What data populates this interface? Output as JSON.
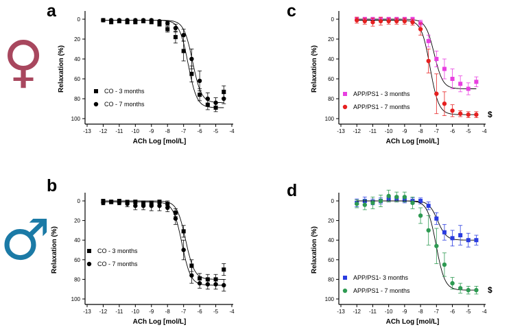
{
  "colors": {
    "female": "#a8475e",
    "male": "#1b7aa6",
    "black": "#000000",
    "magenta": "#e83fe0",
    "red": "#e62020",
    "blue": "#2a3ce0",
    "green": "#2e9a52"
  },
  "symbols": {
    "female": "♀",
    "male": "♂"
  },
  "chart_data": [
    {
      "id": "a",
      "panel_label": "a",
      "type": "scatter",
      "xlabel": "ACh Log [mol/L]",
      "ylabel": "Relaxation (%)",
      "xlim": [
        -13,
        -4
      ],
      "ylim": [
        0,
        100
      ],
      "y_inverted": true,
      "xticks": [
        -13,
        -12,
        -11,
        -10,
        -9,
        -8,
        -7,
        -6,
        -5,
        -4
      ],
      "yticks": [
        0,
        20,
        40,
        60,
        80,
        100
      ],
      "x": [
        -12,
        -11.5,
        -11,
        -10.5,
        -10,
        -9.5,
        -9,
        -8.5,
        -8,
        -7.5,
        -7,
        -6.5,
        -6,
        -5.5,
        -5,
        -4.5
      ],
      "series": [
        {
          "name": "CO - 3 months",
          "marker": "square",
          "color": "#000000",
          "values": [
            1,
            3,
            2,
            3,
            3,
            2,
            3,
            5,
            10,
            18,
            32,
            55,
            76,
            86,
            89,
            73
          ],
          "err": [
            1,
            1,
            1,
            1,
            1,
            1,
            1,
            2,
            3,
            6,
            10,
            8,
            6,
            5,
            4,
            6
          ]
        },
        {
          "name": "CO - 7 months",
          "marker": "circle",
          "color": "#000000",
          "values": [
            1,
            1,
            1,
            1,
            1,
            1,
            1,
            2,
            4,
            9,
            16,
            40,
            62,
            80,
            84,
            80
          ],
          "err": [
            1,
            1,
            1,
            1,
            1,
            1,
            1,
            1,
            2,
            4,
            6,
            10,
            10,
            6,
            5,
            5
          ]
        }
      ]
    },
    {
      "id": "b",
      "panel_label": "b",
      "type": "scatter",
      "xlabel": "ACh Log [mol/L]",
      "ylabel": "Relaxation (%)",
      "xlim": [
        -13,
        -4
      ],
      "ylim": [
        0,
        100
      ],
      "y_inverted": true,
      "xticks": [
        -13,
        -12,
        -11,
        -10,
        -9,
        -8,
        -7,
        -6,
        -5,
        -4
      ],
      "yticks": [
        0,
        20,
        40,
        60,
        80,
        100
      ],
      "x": [
        -12,
        -11.5,
        -11,
        -10.5,
        -10,
        -9.5,
        -9,
        -8.5,
        -8,
        -7.5,
        -7,
        -6.5,
        -6,
        -5.5,
        -5,
        -4.5
      ],
      "series": [
        {
          "name": "CO - 3 months",
          "marker": "square",
          "color": "#000000",
          "values": [
            0,
            1,
            0,
            1,
            1,
            2,
            2,
            1,
            3,
            12,
            31,
            66,
            79,
            80,
            80,
            70
          ],
          "err": [
            1,
            1,
            1,
            1,
            2,
            2,
            2,
            2,
            3,
            4,
            6,
            6,
            5,
            5,
            5,
            6
          ]
        },
        {
          "name": "CO - 7 months",
          "marker": "circle",
          "color": "#000000",
          "values": [
            2,
            1,
            2,
            3,
            5,
            5,
            5,
            5,
            7,
            18,
            50,
            76,
            84,
            85,
            85,
            86
          ],
          "err": [
            2,
            2,
            2,
            3,
            4,
            4,
            5,
            5,
            4,
            6,
            10,
            8,
            5,
            5,
            5,
            6
          ]
        }
      ]
    },
    {
      "id": "c",
      "panel_label": "c",
      "type": "scatter",
      "xlabel": "ACh Log [mol/L]",
      "ylabel": "Relaxation (%)",
      "xlim": [
        -13,
        -4
      ],
      "ylim": [
        0,
        100
      ],
      "y_inverted": true,
      "xticks": [
        -13,
        -12,
        -11,
        -10,
        -9,
        -8,
        -7,
        -6,
        -5,
        -4
      ],
      "yticks": [
        0,
        20,
        40,
        60,
        80,
        100
      ],
      "x": [
        -12,
        -11.5,
        -11,
        -10.5,
        -10,
        -9.5,
        -9,
        -8.5,
        -8,
        -7.5,
        -7,
        -6.5,
        -6,
        -5.5,
        -5,
        -4.5
      ],
      "series": [
        {
          "name": "APP/PS1 - 3 months",
          "marker": "square",
          "color": "#e83fe0",
          "values": [
            0,
            0,
            0,
            0,
            0,
            0,
            0,
            0,
            4,
            22,
            40,
            50,
            60,
            65,
            70,
            63
          ],
          "err": [
            2,
            2,
            2,
            2,
            2,
            2,
            2,
            2,
            3,
            6,
            8,
            10,
            10,
            8,
            6,
            5
          ]
        },
        {
          "name": "APP/PS1 - 7 months",
          "marker": "circle",
          "color": "#e62020",
          "values": [
            1,
            2,
            3,
            2,
            2,
            2,
            2,
            3,
            10,
            42,
            75,
            85,
            92,
            95,
            96,
            96
          ],
          "err": [
            3,
            3,
            4,
            4,
            3,
            3,
            3,
            3,
            6,
            12,
            20,
            12,
            6,
            3,
            3,
            3
          ]
        }
      ],
      "annotation": "$"
    },
    {
      "id": "d",
      "panel_label": "d",
      "type": "scatter",
      "xlabel": "ACh Log [mol/L]",
      "ylabel": "Relaxation (%)",
      "xlim": [
        -13,
        -4
      ],
      "ylim": [
        0,
        100
      ],
      "y_inverted": true,
      "xticks": [
        -13,
        -12,
        -11,
        -10,
        -9,
        -8,
        -7,
        -6,
        -5,
        -4
      ],
      "yticks": [
        0,
        20,
        40,
        60,
        80,
        100
      ],
      "x": [
        -12,
        -11.5,
        -11,
        -10.5,
        -10,
        -9.5,
        -9,
        -8.5,
        -8,
        -7.5,
        -7,
        -6.5,
        -6,
        -5.5,
        -5,
        -4.5
      ],
      "series": [
        {
          "name": "APP/PS1- 3 months",
          "marker": "square",
          "color": "#2a3ce0",
          "values": [
            2,
            0,
            1,
            0,
            -2,
            -2,
            -1,
            0,
            0,
            5,
            18,
            32,
            38,
            35,
            40,
            40
          ],
          "err": [
            4,
            4,
            3,
            3,
            3,
            3,
            3,
            3,
            3,
            4,
            6,
            8,
            8,
            10,
            7,
            5
          ]
        },
        {
          "name": "APP/PS1 - 7 months",
          "marker": "circle",
          "color": "#2e9a52",
          "values": [
            3,
            4,
            2,
            0,
            -5,
            -4,
            -4,
            2,
            15,
            30,
            46,
            65,
            84,
            89,
            91,
            91
          ],
          "err": [
            4,
            5,
            6,
            6,
            6,
            5,
            5,
            6,
            8,
            15,
            18,
            12,
            6,
            5,
            4,
            4
          ]
        }
      ],
      "annotation": "$"
    }
  ]
}
